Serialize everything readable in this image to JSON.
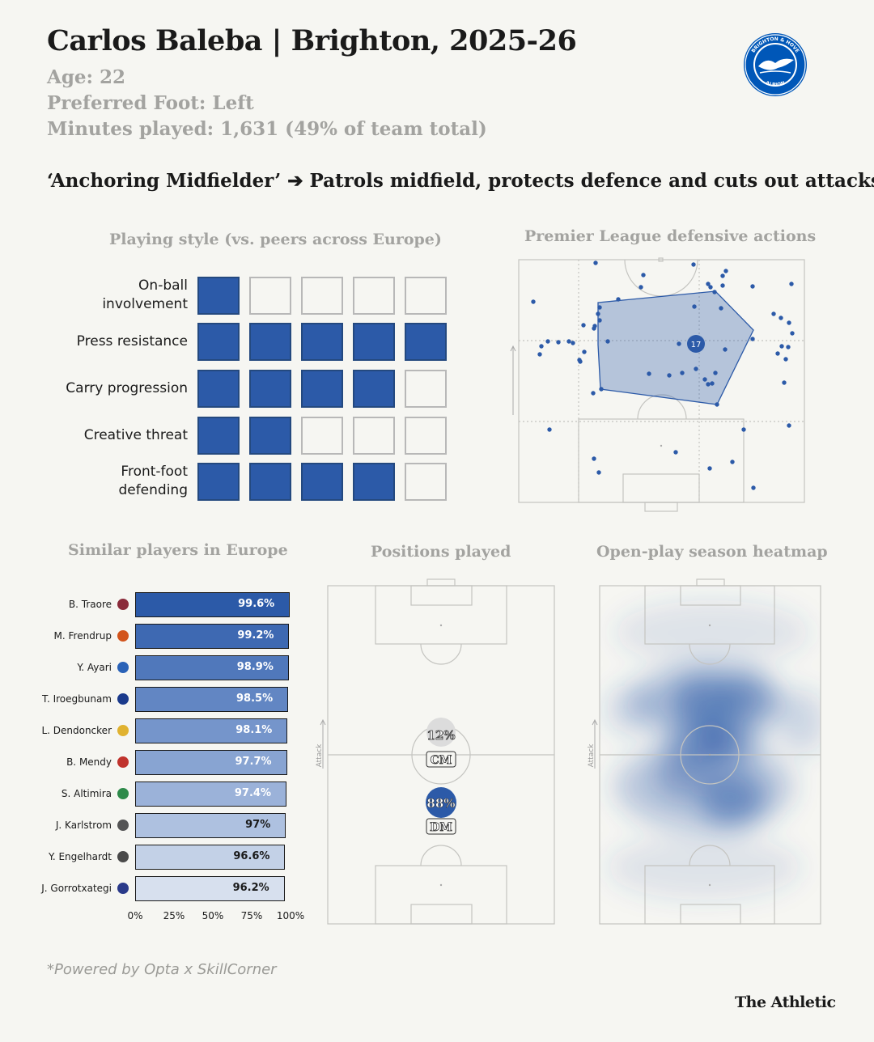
{
  "header": {
    "title": "Carlos Baleba | Brighton, 2025-26",
    "age": "Age: 22",
    "foot": "Preferred Foot: Left",
    "minutes": "Minutes played: 1,631 (49% of team total)",
    "role": "‘Anchoring Midfielder’ ➔ Patrols midfield, protects defence and cuts out attacks",
    "crest_top_text": "BRIGHTON & HOVE",
    "crest_bottom_text": "ALBION"
  },
  "playing_style": {
    "title": "Playing style (vs. peers across Europe)",
    "max_level": 5,
    "rows": [
      {
        "label_1": "On-ball",
        "label_2": "involvement",
        "level": 1
      },
      {
        "label_1": "Press resistance",
        "label_2": "",
        "level": 5
      },
      {
        "label_1": "Carry progression",
        "label_2": "",
        "level": 4
      },
      {
        "label_1": "Creative threat",
        "label_2": "",
        "level": 2
      },
      {
        "label_1": "Front-foot",
        "label_2": "defending",
        "level": 4
      }
    ]
  },
  "defensive_actions": {
    "title": "Premier League defensive actions",
    "shirt_number": "17"
  },
  "chart_data": {
    "type": "bar",
    "title": "Similar players in Europe",
    "categories": [
      "B. Traore",
      "M. Frendrup",
      "Y. Ayari",
      "T. Iroegbunam",
      "L. Dendoncker",
      "B. Mendy",
      "S. Altimira",
      "J. Karlstrom",
      "Y. Engelhardt",
      "J. Gorrotxategi"
    ],
    "values": [
      99.6,
      99.2,
      98.9,
      98.5,
      98.1,
      97.7,
      97.4,
      97,
      96.6,
      96.2
    ],
    "value_labels": [
      "99.6%",
      "99.2%",
      "98.9%",
      "98.5%",
      "98.1%",
      "97.7%",
      "97.4%",
      "97%",
      "96.6%",
      "96.2%"
    ],
    "xlim": [
      0,
      100
    ],
    "ticks": [
      "0%",
      "25%",
      "50%",
      "75%",
      "100%"
    ],
    "bar_colors": [
      "#2c5aa8",
      "#3e69b2",
      "#5078bb",
      "#6286c3",
      "#7595cb",
      "#88a4d2",
      "#9bb2d9",
      "#aec1e0",
      "#c3d1e7",
      "#d7e0ee"
    ],
    "crest_colors": [
      "#8a2b3a",
      "#d2541c",
      "#2a62b7",
      "#1a3a8c",
      "#e0b230",
      "#c0332d",
      "#2e8a4a",
      "#555555",
      "#4a4a4a",
      "#2a3a8a"
    ]
  },
  "positions": {
    "title": "Positions played",
    "attack_label": "Attack",
    "items": [
      {
        "pct": "12%",
        "code": "CM",
        "fill_color": "#dcdcdc"
      },
      {
        "pct": "88%",
        "code": "DM",
        "fill_color": "#2c5aa8"
      }
    ]
  },
  "heatmap": {
    "title": "Open-play season heatmap",
    "attack_label": "Attack"
  },
  "footer": {
    "source": "*Powered by Opta x SkillCorner",
    "brand": "The Athletic"
  },
  "colors": {
    "accent": "#2c5aa8",
    "background": "#f6f6f2",
    "muted_text": "#a3a3a0"
  }
}
